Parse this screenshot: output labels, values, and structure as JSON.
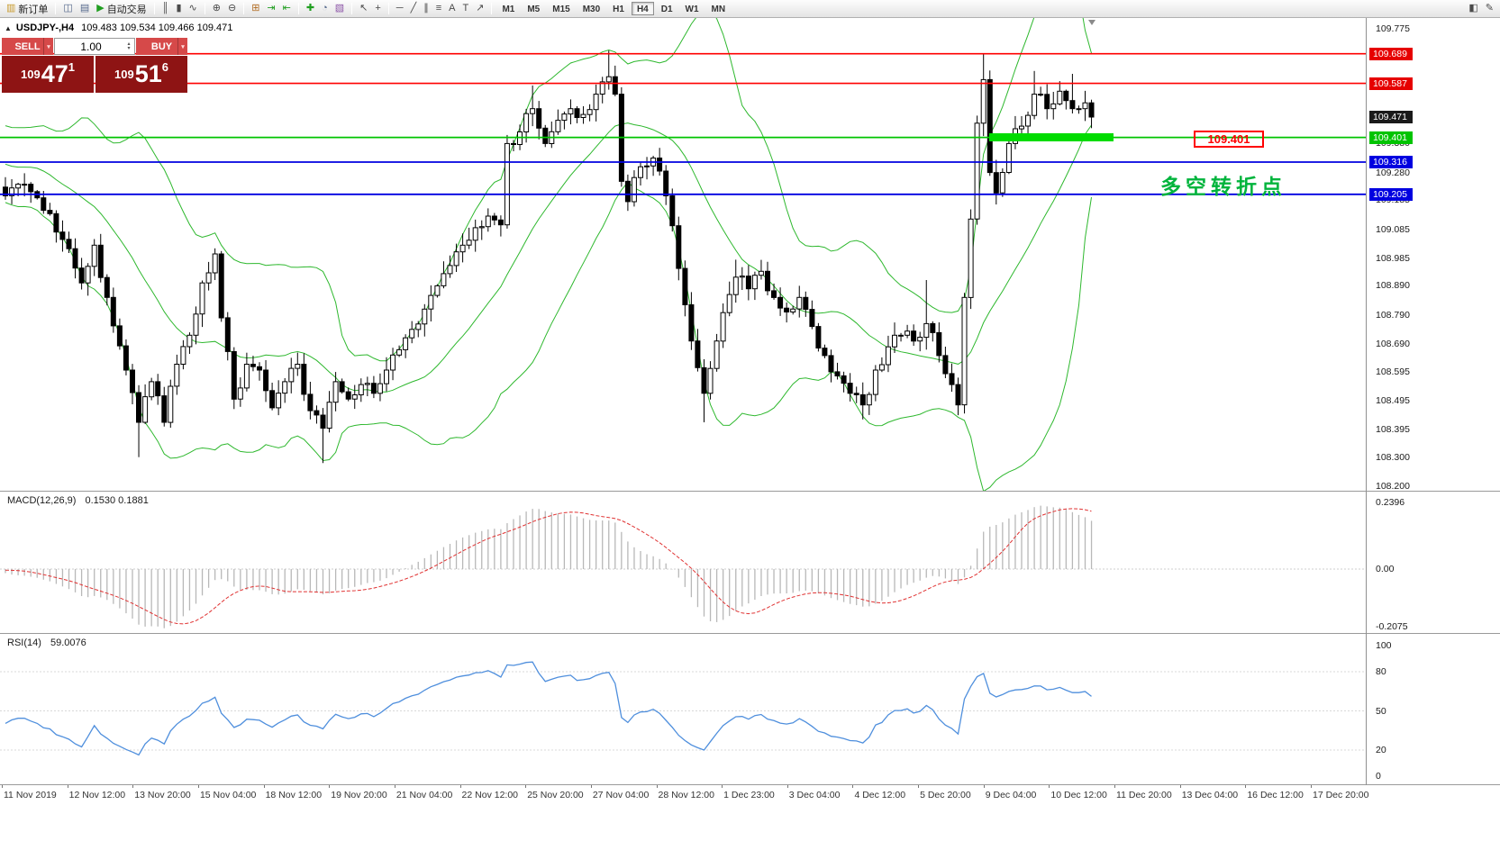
{
  "toolbar": {
    "groups": [
      [
        {
          "name": "new-order",
          "glyph": "▥",
          "color": "#c99b2d",
          "label": "新订单"
        }
      ],
      [
        {
          "name": "chart-window",
          "glyph": "◫",
          "color": "#55688c"
        },
        {
          "name": "market-report",
          "glyph": "▤",
          "color": "#55688c"
        },
        {
          "name": "autotrading",
          "glyph": "▶",
          "color": "#1f9e1f",
          "label": "自动交易"
        }
      ],
      [
        {
          "name": "bar-chart-mode",
          "glyph": "║"
        },
        {
          "name": "candlestick-mode",
          "glyph": "▮"
        },
        {
          "name": "line-chart-mode",
          "glyph": "∿"
        }
      ],
      [
        {
          "name": "zoom-in",
          "glyph": "⊕"
        },
        {
          "name": "zoom-out",
          "glyph": "⊖"
        }
      ],
      [
        {
          "name": "tile-windows",
          "glyph": "⊞",
          "color": "#b06a20"
        },
        {
          "name": "auto-scroll",
          "glyph": "⇥",
          "color": "#1f9e1f"
        },
        {
          "name": "chart-shift",
          "glyph": "⇤",
          "color": "#1f9e1f"
        }
      ],
      [
        {
          "name": "indicators-list",
          "glyph": "✚",
          "color": "#1f9e1f"
        },
        {
          "name": "period-settings",
          "glyph": "◔",
          "color": "#55688c"
        },
        {
          "name": "template",
          "glyph": "▧",
          "color": "#8d56a8"
        }
      ],
      [
        {
          "name": "cursor",
          "glyph": "↖"
        },
        {
          "name": "crosshair",
          "glyph": "+"
        }
      ],
      [
        {
          "name": "horizontal-line",
          "glyph": "─"
        },
        {
          "name": "trendline",
          "glyph": "╱"
        },
        {
          "name": "equidistant-channel",
          "glyph": "∥"
        },
        {
          "name": "fibonacci-retracement",
          "glyph": "≡"
        },
        {
          "name": "text",
          "glyph": "A"
        },
        {
          "name": "text-label",
          "glyph": "T"
        },
        {
          "name": "arrow-objects",
          "glyph": "↗"
        }
      ]
    ],
    "right_buttons": [
      {
        "name": "chart-profile",
        "glyph": "◧"
      },
      {
        "name": "edit-mode",
        "glyph": "✎"
      }
    ],
    "timeframes": {
      "items": [
        "M1",
        "M5",
        "M15",
        "M30",
        "H1",
        "H4",
        "D1",
        "W1",
        "MN"
      ],
      "active": "H4"
    }
  },
  "chart_header": {
    "collapse_icon": "▲",
    "symbol_title": "USDJPY-,H4",
    "ohlc": "109.483 109.534 109.466 109.471"
  },
  "trade_panel": {
    "sell_label": "SELL",
    "buy_label": "BUY",
    "volume": "1.00",
    "dropdown_glyph": "▾",
    "spin_up_glyph": "▴",
    "spin_down_glyph": "▾",
    "bid_prefix": "109",
    "bid_big": "47",
    "bid_sup": "1",
    "ask_prefix": "109",
    "ask_big": "51",
    "ask_sup": "6",
    "button_color": "#d64949",
    "quote_bg": "#8e1414"
  },
  "price_scale": {
    "plain_ticks": [
      109.775,
      109.38,
      109.28,
      109.185,
      109.085,
      108.985,
      108.89,
      108.79,
      108.69,
      108.595,
      108.495,
      108.395,
      108.3,
      108.2
    ],
    "badges": [
      {
        "text": "109.689",
        "color": "#e60000"
      },
      {
        "text": "109.587",
        "color": "#e60000"
      },
      {
        "text": "109.471",
        "color": "#1a1a1a"
      },
      {
        "text": "109.401",
        "color": "#00c400"
      },
      {
        "text": "109.316",
        "color": "#0000e0"
      },
      {
        "text": "109.205",
        "color": "#0000e0"
      }
    ]
  },
  "indicators": {
    "macd_label": "MACD(12,26,9)",
    "macd_values": "0.1530 0.1881",
    "rsi_label": "RSI(14)",
    "rsi_value": "59.0076",
    "macd_scale": [
      "0.2396",
      "0.00",
      "-0.2075"
    ],
    "rsi_scale": [
      "100",
      "80",
      "50",
      "20",
      "0"
    ]
  },
  "time_axis": {
    "labels": [
      "11 Nov 2019",
      "12 Nov 12:00",
      "13 Nov 20:00",
      "15 Nov 04:00",
      "18 Nov 12:00",
      "19 Nov 20:00",
      "21 Nov 04:00",
      "22 Nov 12:00",
      "25 Nov 20:00",
      "27 Nov 04:00",
      "28 Nov 12:00",
      "1 Dec 23:00",
      "3 Dec 04:00",
      "4 Dec 12:00",
      "5 Dec 20:00",
      "9 Dec 04:00",
      "10 Dec 12:00",
      "11 Dec 20:00",
      "13 Dec 04:00",
      "16 Dec 12:00",
      "17 Dec 20:00"
    ]
  },
  "annotations": {
    "level_label": "109.401",
    "note_text": "多空转折点",
    "note_color": "#00b43c",
    "highlight_color": "#00dc00"
  },
  "chart_data": {
    "type": "candlestick",
    "symbol": "USDJPY-",
    "timeframe": "H4",
    "current": {
      "open": 109.483,
      "high": 109.534,
      "low": 109.466,
      "close": 109.471,
      "bid": 109.471,
      "ask": 109.516
    },
    "price_axis_range": [
      108.2,
      109.775
    ],
    "bars": 172,
    "close_anchors": [
      [
        0,
        109.2
      ],
      [
        3,
        109.24
      ],
      [
        6,
        109.15
      ],
      [
        9,
        109.05
      ],
      [
        12,
        108.9
      ],
      [
        14,
        109.03
      ],
      [
        16,
        108.85
      ],
      [
        19,
        108.6
      ],
      [
        21,
        108.42
      ],
      [
        23,
        108.56
      ],
      [
        25,
        108.42
      ],
      [
        27,
        108.62
      ],
      [
        29,
        108.72
      ],
      [
        31,
        108.9
      ],
      [
        33,
        109.0
      ],
      [
        34,
        108.78
      ],
      [
        36,
        108.5
      ],
      [
        38,
        108.62
      ],
      [
        40,
        108.6
      ],
      [
        42,
        108.47
      ],
      [
        44,
        108.56
      ],
      [
        46,
        108.62
      ],
      [
        48,
        108.46
      ],
      [
        50,
        108.4
      ],
      [
        52,
        108.56
      ],
      [
        54,
        108.5
      ],
      [
        56,
        108.55
      ],
      [
        58,
        108.52
      ],
      [
        60,
        108.6
      ],
      [
        62,
        108.67
      ],
      [
        64,
        108.74
      ],
      [
        66,
        108.81
      ],
      [
        68,
        108.89
      ],
      [
        70,
        108.96
      ],
      [
        72,
        109.03
      ],
      [
        74,
        109.09
      ],
      [
        76,
        109.13
      ],
      [
        78,
        109.1
      ],
      [
        79,
        109.38
      ],
      [
        81,
        109.42
      ],
      [
        83,
        109.5
      ],
      [
        85,
        109.38
      ],
      [
        87,
        109.46
      ],
      [
        89,
        109.5
      ],
      [
        91,
        109.48
      ],
      [
        93,
        109.55
      ],
      [
        95,
        109.61
      ],
      [
        96,
        109.55
      ],
      [
        97,
        109.25
      ],
      [
        98,
        109.18
      ],
      [
        100,
        109.3
      ],
      [
        102,
        109.33
      ],
      [
        104,
        109.2
      ],
      [
        106,
        108.95
      ],
      [
        108,
        108.7
      ],
      [
        110,
        108.52
      ],
      [
        112,
        108.7
      ],
      [
        114,
        108.86
      ],
      [
        115,
        108.92
      ],
      [
        117,
        108.88
      ],
      [
        119,
        108.94
      ],
      [
        121,
        108.85
      ],
      [
        123,
        108.8
      ],
      [
        125,
        108.85
      ],
      [
        127,
        108.75
      ],
      [
        129,
        108.65
      ],
      [
        131,
        108.58
      ],
      [
        133,
        108.52
      ],
      [
        135,
        108.48
      ],
      [
        137,
        108.6
      ],
      [
        139,
        108.68
      ],
      [
        141,
        108.72
      ],
      [
        143,
        108.7
      ],
      [
        145,
        108.76
      ],
      [
        147,
        108.65
      ],
      [
        149,
        108.55
      ],
      [
        150,
        108.48
      ],
      [
        151,
        108.85
      ],
      [
        152,
        109.12
      ],
      [
        153,
        109.45
      ],
      [
        154,
        109.6
      ],
      [
        155,
        109.28
      ],
      [
        156,
        109.21
      ],
      [
        158,
        109.38
      ],
      [
        160,
        109.44
      ],
      [
        162,
        109.55
      ],
      [
        164,
        109.5
      ],
      [
        166,
        109.56
      ],
      [
        168,
        109.5
      ],
      [
        170,
        109.52
      ],
      [
        171,
        109.471
      ]
    ],
    "wick_overrides": [
      [
        21,
        108.3
      ],
      [
        50,
        108.28
      ],
      [
        83,
        109.58
      ],
      [
        95,
        109.7
      ],
      [
        110,
        108.42
      ],
      [
        115,
        108.98
      ],
      [
        135,
        108.43
      ],
      [
        145,
        108.91
      ],
      [
        154,
        109.69
      ],
      [
        156,
        109.17
      ],
      [
        162,
        109.63
      ],
      [
        168,
        109.62
      ]
    ],
    "bollinger": {
      "period": 20,
      "deviation": 2,
      "color": "#2eb82e"
    },
    "hlines": [
      {
        "price": 109.689,
        "color": "#ff0000",
        "width": 1.6
      },
      {
        "price": 109.587,
        "color": "#ff0000",
        "width": 1.6
      },
      {
        "price": 109.401,
        "color": "#00c400",
        "width": 1.8
      },
      {
        "price": 109.316,
        "color": "#0000e0",
        "width": 1.8
      },
      {
        "price": 109.205,
        "color": "#0000e0",
        "width": 1.8
      }
    ],
    "macd": {
      "fast": 12,
      "slow": 26,
      "signal": 9,
      "value": 0.153,
      "signal_value": 0.1881,
      "scale_max": 0.2396,
      "scale_min": -0.2075,
      "histogram_color": "#b8b8b8",
      "signal_color": "#e03232"
    },
    "rsi": {
      "period": 14,
      "value": 59.0076,
      "levels": [
        80,
        50,
        20
      ],
      "line_color": "#4f8fdd"
    }
  }
}
